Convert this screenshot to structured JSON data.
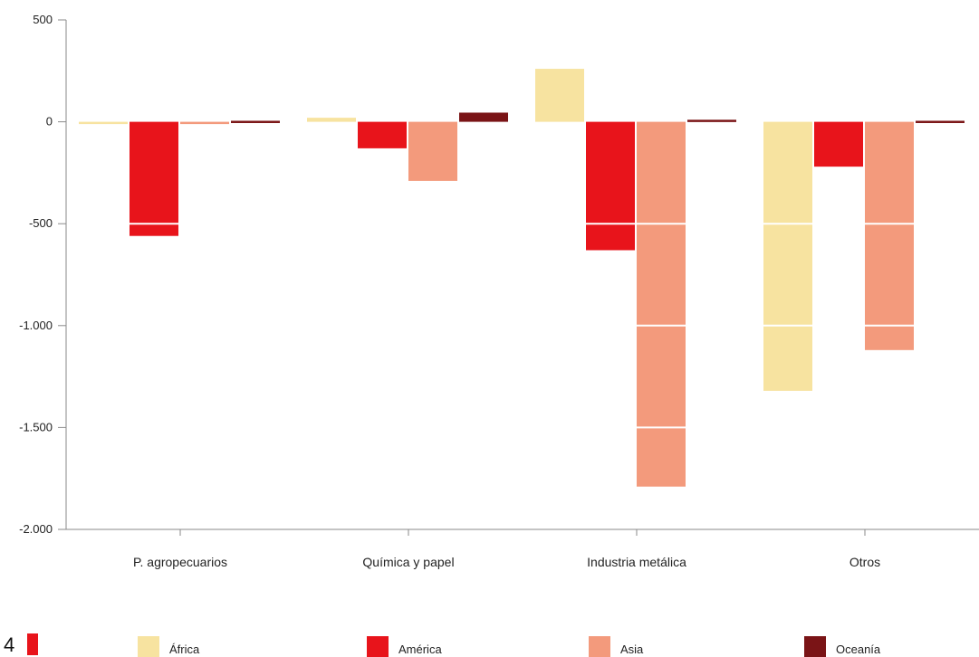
{
  "page": {
    "number": "4",
    "marker_color": "#e8141b"
  },
  "chart_data": {
    "type": "bar",
    "title": "",
    "xlabel": "",
    "ylabel": "",
    "ylim": [
      -2000,
      500
    ],
    "yticks": [
      {
        "value": 500,
        "label": "500"
      },
      {
        "value": 0,
        "label": "0"
      },
      {
        "value": -500,
        "label": "-500"
      },
      {
        "value": -1000,
        "label": "-1.000"
      },
      {
        "value": -1500,
        "label": "-1.500"
      },
      {
        "value": -2000,
        "label": "-2.000"
      }
    ],
    "categories": [
      "P. agropecuarios",
      "Química y papel",
      "Industria metálica",
      "Otros"
    ],
    "series": [
      {
        "name": "África",
        "color": "#f7e3a0",
        "values": [
          -10,
          20,
          260,
          -1320
        ]
      },
      {
        "name": "América",
        "color": "#e8141b",
        "values": [
          -560,
          -130,
          -630,
          -220
        ]
      },
      {
        "name": "Asia",
        "color": "#f39a7c",
        "values": [
          -10,
          -290,
          -1790,
          -1120
        ]
      },
      {
        "name": "Oceanía",
        "color": "#7a1416",
        "values": [
          5,
          45,
          10,
          5
        ]
      }
    ],
    "grid": false,
    "legend_position": "bottom",
    "gridline_overlay_color": "#ffffff"
  }
}
